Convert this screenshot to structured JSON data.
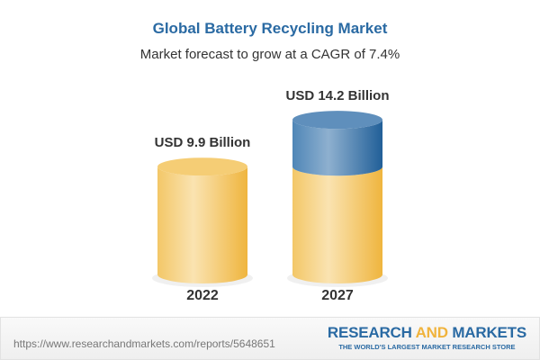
{
  "title": "Global Battery Recycling Market",
  "subtitle": "Market forecast to grow at a CAGR of 7.4%",
  "chart_data": {
    "type": "bar",
    "style": "3d-cylinder",
    "categories": [
      "2022",
      "2027"
    ],
    "values": [
      9.9,
      14.2
    ],
    "data_labels": [
      "USD 9.9 Billion",
      "USD 14.2 Billion"
    ],
    "unit": "USD Billion",
    "colors": {
      "base": "#f2c25a",
      "growth": "#2f6ea6"
    }
  },
  "footer": {
    "url": "https://www.researchandmarkets.com/reports/5648651",
    "logo_part1": "RESEARCH ",
    "logo_part2": "AND",
    "logo_part3": " MARKETS",
    "tagline": "THE WORLD'S LARGEST MARKET RESEARCH STORE"
  }
}
